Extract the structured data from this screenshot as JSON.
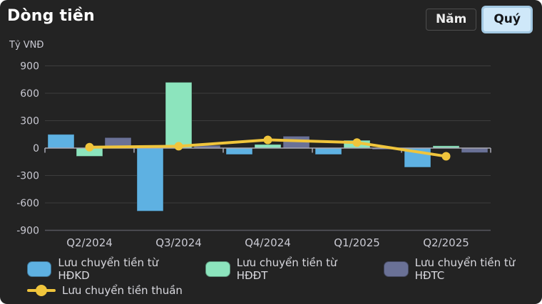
{
  "header": {
    "title": "Dòng tiền"
  },
  "controls": {
    "options": [
      {
        "label": "Năm",
        "selected": false
      },
      {
        "label": "Quý",
        "selected": true
      }
    ]
  },
  "chart_data": {
    "type": "bar",
    "title": "Dòng tiền",
    "unit_label": "Tỷ VNĐ",
    "categories": [
      "Q2/2024",
      "Q3/2024",
      "Q4/2024",
      "Q1/2025",
      "Q2/2025"
    ],
    "series": [
      {
        "name": "Lưu chuyển tiền từ HĐKD",
        "kind": "bar",
        "color": "#5eb1e2",
        "values": [
          150,
          -690,
          -70,
          -70,
          -210
        ]
      },
      {
        "name": "Lưu chuyển tiền từ HĐĐT",
        "kind": "bar",
        "color": "#8ce4bd",
        "values": [
          -90,
          720,
          40,
          85,
          25
        ]
      },
      {
        "name": "Lưu chuyển tiền từ HĐTC",
        "kind": "bar",
        "color": "#6a7196",
        "values": [
          115,
          30,
          130,
          -15,
          -50
        ]
      },
      {
        "name": "Lưu chuyển tiền thuần",
        "kind": "line",
        "color": "#f0c53c",
        "values": [
          10,
          20,
          90,
          60,
          -90
        ]
      }
    ],
    "yticks": [
      900,
      600,
      300,
      0,
      -300,
      -600,
      -900
    ],
    "ylim": [
      -900,
      900
    ],
    "grid": true,
    "legend_position": "bottom",
    "colors": {
      "grid": "#3d3d3d",
      "zero_line": "#a9a9b4",
      "axis_bottom": "#56565e",
      "tick_text": "#c9c9d2"
    }
  }
}
